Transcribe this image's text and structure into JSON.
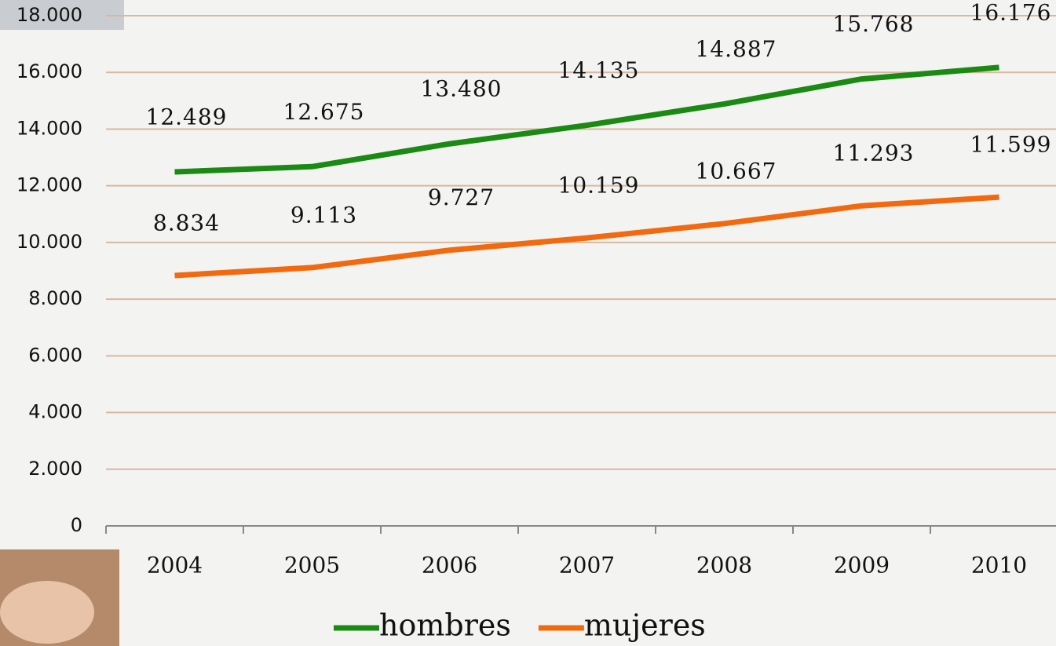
{
  "chart_data": {
    "type": "line",
    "categories": [
      "2004",
      "2005",
      "2006",
      "2007",
      "2008",
      "2009",
      "2010"
    ],
    "series": [
      {
        "name": "hombres",
        "color": "#1a8a12",
        "values": [
          12489,
          12675,
          13480,
          14135,
          14887,
          15768,
          16176
        ],
        "value_labels": [
          "12.489",
          "12.675",
          "13.480",
          "14.135",
          "14.887",
          "15.768",
          "16.176"
        ]
      },
      {
        "name": "mujeres",
        "color": "#f26a10",
        "values": [
          8834,
          9113,
          9727,
          10159,
          10667,
          11293,
          11599
        ],
        "value_labels": [
          "8.834",
          "9.113",
          "9.727",
          "10.159",
          "10.667",
          "11.293",
          "11.599"
        ]
      }
    ],
    "ylim": [
      0,
      18000
    ],
    "yticks": [
      0,
      {
        "value": 2000,
        "label": "2.000"
      },
      {
        "value": 4000,
        "label": "4.000"
      },
      {
        "value": 6000,
        "label": "6.000"
      },
      {
        "value": 8000,
        "label": "8.000"
      },
      {
        "value": 10000,
        "label": "10.000"
      },
      {
        "value": 12000,
        "label": "12.000"
      },
      {
        "value": 14000,
        "label": "14.000"
      },
      {
        "value": 16000,
        "label": "16.000"
      },
      {
        "value": 18000,
        "label": "18.000"
      }
    ],
    "grid": true,
    "legend": "bottom"
  }
}
